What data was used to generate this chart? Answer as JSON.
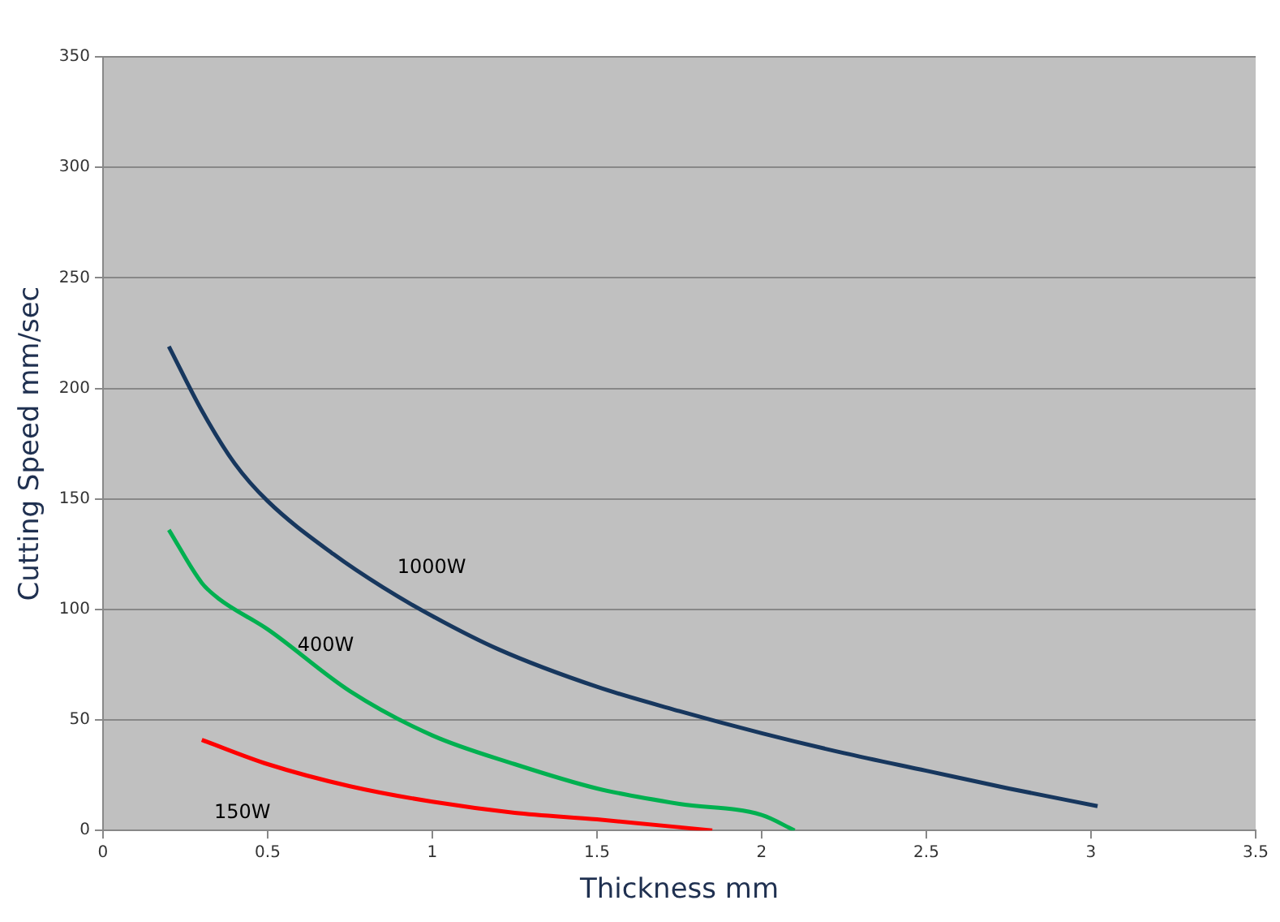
{
  "chart_data": {
    "type": "line",
    "xlabel": "Thickness mm",
    "ylabel": "Cutting Speed mm/sec",
    "xlim": [
      0,
      3.5
    ],
    "xticks": [
      0,
      0.5,
      1,
      1.5,
      2,
      2.5,
      3,
      3.5
    ],
    "ylim": [
      0,
      350
    ],
    "yticks": [
      0,
      50,
      100,
      150,
      200,
      250,
      300,
      350
    ],
    "grid": "y",
    "legend": false,
    "marker": "none",
    "line_style": "solid",
    "series": [
      {
        "name": "1000W",
        "color": "#17375e",
        "x": [
          0.2,
          0.3,
          0.4,
          0.5,
          0.7,
          0.85,
          1,
          1.2,
          1.5,
          1.75,
          2,
          2.25,
          2.5,
          2.75,
          3.02
        ],
        "values": [
          219,
          190,
          166,
          149,
          125,
          110,
          97,
          82,
          65,
          54,
          44,
          35,
          27,
          19,
          11
        ]
      },
      {
        "name": "400W",
        "color": "#00b050",
        "x": [
          0.2,
          0.3,
          0.35,
          0.5,
          0.75,
          1,
          1.25,
          1.5,
          1.75,
          2,
          2.1
        ],
        "values": [
          136,
          112,
          105,
          91,
          63,
          43,
          30,
          19,
          12,
          7,
          0
        ]
      },
      {
        "name": "150W",
        "color": "#ff0000",
        "x": [
          0.3,
          0.5,
          0.75,
          1,
          1.25,
          1.5,
          1.85
        ],
        "values": [
          41,
          30,
          20,
          13,
          8,
          5,
          0
        ]
      }
    ]
  }
}
